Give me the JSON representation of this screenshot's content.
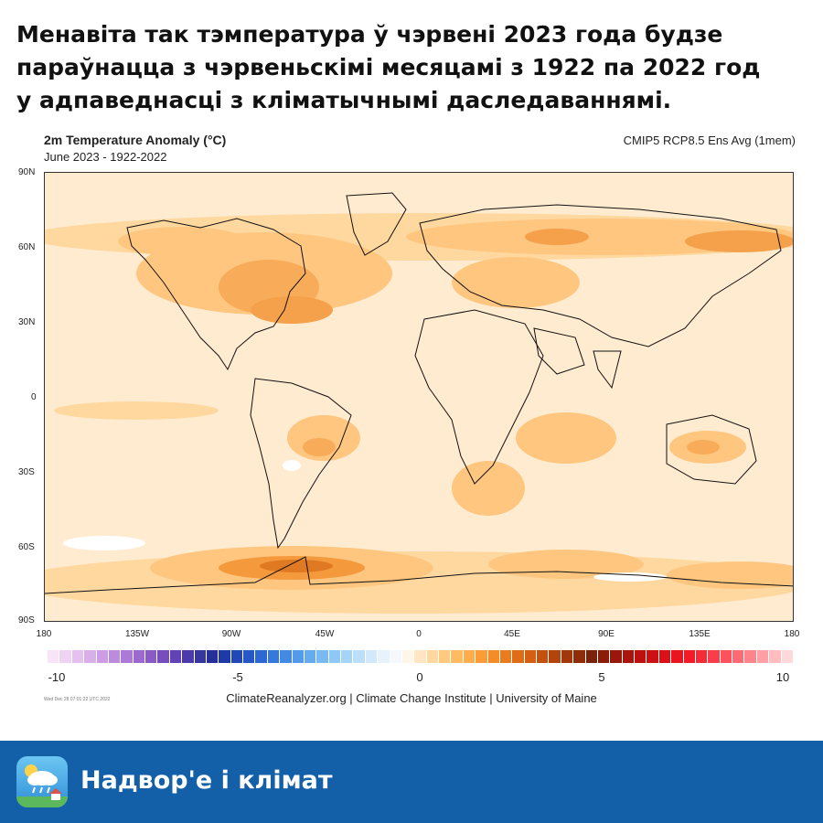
{
  "headline": {
    "line1": "Менавіта так тэмпература ў чэрвені 2023 года будзе",
    "line2": "параўнацца з чэрвеньскімі месяцамі з 1922 па 2022 год",
    "line3": "у адпаведнасці з кліматычнымі даследаваннямі."
  },
  "map": {
    "title": "2m Temperature Anomaly (°C)",
    "subtitle": "June 2023 - 1922-2022",
    "model": "CMIP5 RCP8.5 Ens Avg (1mem)",
    "lat_labels": [
      "90N",
      "60N",
      "30N",
      "0",
      "30S",
      "60S",
      "90S"
    ],
    "lon_labels": [
      "180",
      "135W",
      "90W",
      "45W",
      "0",
      "45E",
      "90E",
      "135E",
      "180"
    ]
  },
  "colorbar": {
    "labels": [
      "-10",
      "-5",
      "0",
      "5",
      "10"
    ],
    "colors": [
      "#f7e4f7",
      "#eed3f2",
      "#e4c1ee",
      "#d9afe9",
      "#cc9de4",
      "#bd8bdd",
      "#ad79d6",
      "#9c69cf",
      "#8a5bc7",
      "#774dbe",
      "#6242b4",
      "#4d3aaa",
      "#3636a0",
      "#262f97",
      "#1f3aa6",
      "#2148b6",
      "#2657c4",
      "#2d67d1",
      "#3679dc",
      "#438ae4",
      "#539bea",
      "#65abef",
      "#79baf2",
      "#8ec8f4",
      "#a4d4f6",
      "#bbdff8",
      "#d1e9fa",
      "#e6f2fc",
      "#f5f9fe",
      "#fff6ea",
      "#ffe5c2",
      "#ffd89f",
      "#ffca7f",
      "#ffbb62",
      "#ffac4a",
      "#fb9c36",
      "#f48c27",
      "#eb7c1d",
      "#e06d16",
      "#d35f12",
      "#c4510f",
      "#b3440d",
      "#a1380c",
      "#8f2d0b",
      "#7c220a",
      "#8a1c0a",
      "#9a170b",
      "#ab130d",
      "#bc110f",
      "#cc1013",
      "#dc1118",
      "#ea151f",
      "#f21c29",
      "#f72a38",
      "#fa3d4a",
      "#fc525e",
      "#fd6a74",
      "#fe848b",
      "#ffa0a4",
      "#ffbdbf",
      "#ffd8d9"
    ]
  },
  "credits": "ClimateReanalyzer.org | Climate Change Institute | University of Maine",
  "timestamp": "Wed Dec 28 07:01:22 UTC 2022",
  "footer": {
    "name": "Надвор'е і клімат",
    "icon": "weather-app-icon"
  }
}
